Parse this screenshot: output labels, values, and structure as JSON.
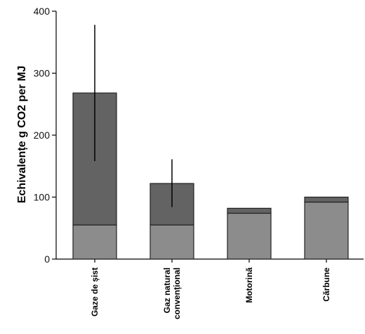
{
  "chart_data": {
    "type": "bar",
    "stacked": true,
    "categories": [
      "Gaze de șist",
      "Gaz natural\nconvențional",
      "Motorină",
      "Cărbune"
    ],
    "series": [
      {
        "color": "#8c8c8c",
        "values": [
          55,
          55,
          74,
          92
        ]
      },
      {
        "color": "#636363",
        "values": [
          213,
          67,
          8,
          8
        ]
      }
    ],
    "error_bars": [
      {
        "low": 158,
        "high": 378
      },
      {
        "low": 84,
        "high": 161
      },
      null,
      null
    ],
    "ylabel": "Echivalențe g CO2 per MJ",
    "xlabel": "",
    "title": "",
    "ylim": [
      0,
      400
    ],
    "yticks": [
      0,
      100,
      200,
      300,
      400
    ],
    "grid": false,
    "legend": "none"
  }
}
